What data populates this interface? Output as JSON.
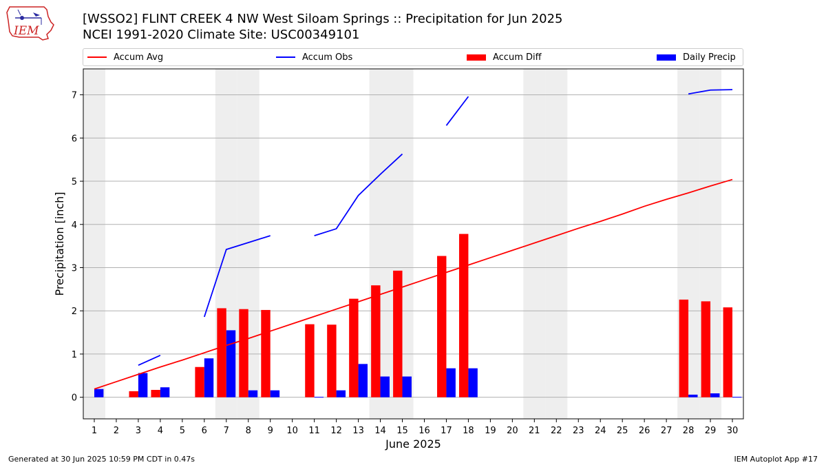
{
  "header": {
    "title_line1": "[WSSO2] FLINT CREEK 4 NW West Siloam Springs :: Precipitation for Jun 2025",
    "title_line2": "NCEI 1991-2020 Climate Site: USC00349101",
    "logo_text": "IEM"
  },
  "footer": {
    "left": "Generated at 30 Jun 2025 10:59 PM CDT in 0.47s",
    "right": "IEM Autoplot App #17"
  },
  "colors": {
    "accum_avg": "#ff0000",
    "accum_obs": "#0000ff",
    "accum_diff": "#ff0000",
    "daily_precip": "#0000ff",
    "weekend_shade": "#eeeeee",
    "grid": "#b0b0b0"
  },
  "chart_data": {
    "type": "bar",
    "xlabel": "June 2025",
    "ylabel": "Precipitation [inch]",
    "xlim": [
      0.5,
      30.5
    ],
    "ylim": [
      -0.5,
      7.6
    ],
    "yticks": [
      0,
      1,
      2,
      3,
      4,
      5,
      6,
      7
    ],
    "grid": "horizontal",
    "legend_position": "top",
    "days": [
      1,
      2,
      3,
      4,
      5,
      6,
      7,
      8,
      9,
      10,
      11,
      12,
      13,
      14,
      15,
      16,
      17,
      18,
      19,
      20,
      21,
      22,
      23,
      24,
      25,
      26,
      27,
      28,
      29,
      30
    ],
    "weekend_days": [
      1,
      7,
      8,
      14,
      15,
      21,
      22,
      28,
      29
    ],
    "series": [
      {
        "name": "Accum Avg",
        "kind": "line",
        "values": [
          0.19,
          0.36,
          0.53,
          0.7,
          0.86,
          1.03,
          1.2,
          1.36,
          1.53,
          1.7,
          1.87,
          2.04,
          2.21,
          2.38,
          2.55,
          2.72,
          2.89,
          3.06,
          3.23,
          3.4,
          3.57,
          3.74,
          3.91,
          4.07,
          4.24,
          4.42,
          4.58,
          4.73,
          4.89,
          5.04
        ]
      },
      {
        "name": "Accum Obs",
        "kind": "line",
        "values": [
          null,
          null,
          0.74,
          0.97,
          null,
          1.86,
          3.42,
          3.58,
          3.74,
          null,
          3.74,
          3.9,
          4.67,
          5.16,
          5.63,
          null,
          6.29,
          6.96,
          null,
          null,
          null,
          null,
          null,
          null,
          null,
          null,
          null,
          7.02,
          7.11,
          7.12
        ]
      },
      {
        "name": "Accum Diff",
        "kind": "bar",
        "values": [
          0,
          0,
          0.14,
          0.17,
          0,
          0.7,
          2.06,
          2.04,
          2.02,
          0,
          1.69,
          1.68,
          2.28,
          2.59,
          2.93,
          0,
          3.27,
          3.78,
          0,
          0,
          0,
          0,
          0,
          0,
          0,
          0,
          0,
          2.26,
          2.22,
          2.08
        ]
      },
      {
        "name": "Daily Precip",
        "kind": "bar",
        "values": [
          0.19,
          0,
          0.56,
          0.23,
          0,
          0.9,
          1.55,
          0.16,
          0.16,
          0,
          0.01,
          0.16,
          0.77,
          0.48,
          0.48,
          0,
          0.67,
          0.67,
          0,
          0,
          0,
          0,
          0,
          0,
          0,
          0,
          0,
          0.06,
          0.09,
          0.01
        ]
      }
    ]
  }
}
